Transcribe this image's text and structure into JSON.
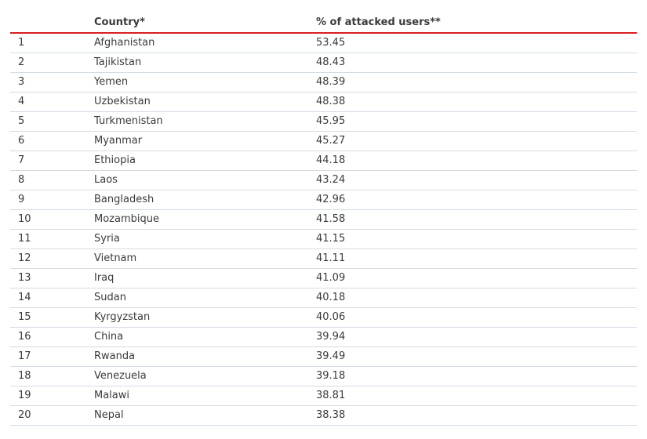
{
  "table": {
    "headers": {
      "rank": "",
      "country": "Country*",
      "value": "% of attacked users**"
    },
    "rows": [
      {
        "rank": "1",
        "country": "Afghanistan",
        "value": "53.45"
      },
      {
        "rank": "2",
        "country": "Tajikistan",
        "value": "48.43"
      },
      {
        "rank": "3",
        "country": "Yemen",
        "value": "48.39"
      },
      {
        "rank": "4",
        "country": "Uzbekistan",
        "value": "48.38"
      },
      {
        "rank": "5",
        "country": "Turkmenistan",
        "value": "45.95"
      },
      {
        "rank": "6",
        "country": "Myanmar",
        "value": "45.27"
      },
      {
        "rank": "7",
        "country": "Ethiopia",
        "value": "44.18"
      },
      {
        "rank": "8",
        "country": "Laos",
        "value": "43.24"
      },
      {
        "rank": "9",
        "country": "Bangladesh",
        "value": "42.96"
      },
      {
        "rank": "10",
        "country": "Mozambique",
        "value": "41.58"
      },
      {
        "rank": "11",
        "country": "Syria",
        "value": "41.15"
      },
      {
        "rank": "12",
        "country": "Vietnam",
        "value": "41.11"
      },
      {
        "rank": "13",
        "country": "Iraq",
        "value": "41.09"
      },
      {
        "rank": "14",
        "country": "Sudan",
        "value": "40.18"
      },
      {
        "rank": "15",
        "country": "Kyrgyzstan",
        "value": "40.06"
      },
      {
        "rank": "16",
        "country": "China",
        "value": "39.94"
      },
      {
        "rank": "17",
        "country": "Rwanda",
        "value": "39.49"
      },
      {
        "rank": "18",
        "country": "Venezuela",
        "value": "39.18"
      },
      {
        "rank": "19",
        "country": "Malawi",
        "value": "38.81"
      },
      {
        "rank": "20",
        "country": "Nepal",
        "value": "38.38"
      }
    ]
  },
  "colors": {
    "header_rule": "#d81f26",
    "row_rule": "#d3dce2",
    "text": "#3a3a3a"
  }
}
